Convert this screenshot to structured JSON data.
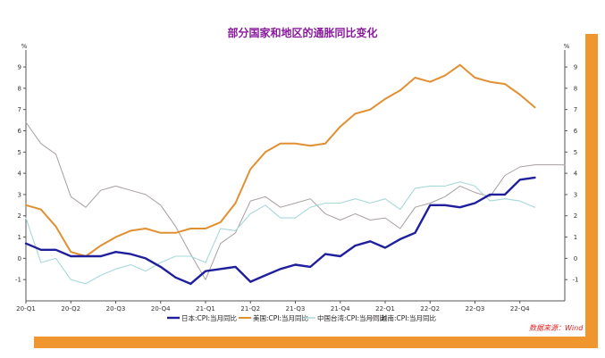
{
  "chart_data": {
    "type": "line",
    "title": "部分国家和地区的通胀同比变化",
    "y_unit_label": "%",
    "ylim": [
      -2,
      9.8
    ],
    "y_ticks": [
      -1,
      0,
      1,
      2,
      3,
      4,
      5,
      6,
      7,
      8,
      9
    ],
    "x_tick_labels": [
      "20-Q1",
      "20-Q2",
      "20-Q3",
      "20-Q4",
      "21-Q1",
      "21-Q2",
      "21-Q3",
      "21-Q4",
      "22-Q1",
      "22-Q2",
      "22-Q3",
      "22-Q4"
    ],
    "x": [
      "2020-01",
      "2020-02",
      "2020-03",
      "2020-04",
      "2020-05",
      "2020-06",
      "2020-07",
      "2020-08",
      "2020-09",
      "2020-10",
      "2020-11",
      "2020-12",
      "2021-01",
      "2021-02",
      "2021-03",
      "2021-04",
      "2021-05",
      "2021-06",
      "2021-07",
      "2021-08",
      "2021-09",
      "2021-10",
      "2021-11",
      "2021-12",
      "2022-01",
      "2022-02",
      "2022-03",
      "2022-04",
      "2022-05",
      "2022-06",
      "2022-07",
      "2022-08",
      "2022-09",
      "2022-10",
      "2022-11",
      "2022-12",
      "2023-01"
    ],
    "series": [
      {
        "name": "日本:CPI:当月同比",
        "color": "#1f1f9e",
        "width": 2.4,
        "values": [
          0.7,
          0.4,
          0.4,
          0.1,
          0.1,
          0.1,
          0.3,
          0.2,
          0.0,
          -0.4,
          -0.9,
          -1.2,
          -0.6,
          -0.5,
          -0.4,
          -1.1,
          -0.8,
          -0.5,
          -0.3,
          -0.4,
          0.2,
          0.1,
          0.6,
          0.8,
          0.5,
          0.9,
          1.2,
          2.5,
          2.5,
          2.4,
          2.6,
          3.0,
          3.0,
          3.7,
          3.8,
          null,
          null
        ]
      },
      {
        "name": "美国:CPI:当月同比",
        "color": "#e09030",
        "width": 2.0,
        "values": [
          2.5,
          2.3,
          1.5,
          0.3,
          0.1,
          0.6,
          1.0,
          1.3,
          1.4,
          1.2,
          1.2,
          1.4,
          1.4,
          1.7,
          2.6,
          4.2,
          5.0,
          5.4,
          5.4,
          5.3,
          5.4,
          6.2,
          6.8,
          7.0,
          7.5,
          7.9,
          8.5,
          8.3,
          8.6,
          9.1,
          8.5,
          8.3,
          8.2,
          7.7,
          7.1,
          null,
          null
        ]
      },
      {
        "name": "中国台湾:CPI:当月同比",
        "color": "#a8d8d8",
        "width": 1.1,
        "values": [
          1.9,
          -0.2,
          0.0,
          -1.0,
          -1.2,
          -0.8,
          -0.5,
          -0.3,
          -0.6,
          -0.2,
          0.1,
          0.1,
          -0.2,
          1.4,
          1.3,
          2.1,
          2.5,
          1.9,
          1.9,
          2.4,
          2.6,
          2.6,
          2.8,
          2.6,
          2.8,
          2.3,
          3.3,
          3.4,
          3.4,
          3.6,
          3.4,
          2.7,
          2.8,
          2.7,
          2.4,
          null,
          null
        ]
      },
      {
        "name": "越南:CPI:当月同比",
        "color": "#a89ea0",
        "width": 1.0,
        "values": [
          6.4,
          5.4,
          4.9,
          2.9,
          2.4,
          3.2,
          3.4,
          3.2,
          3.0,
          2.5,
          1.5,
          0.2,
          -1.0,
          0.7,
          1.2,
          2.7,
          2.9,
          2.4,
          2.6,
          2.8,
          2.1,
          1.8,
          2.1,
          1.8,
          1.9,
          1.4,
          2.4,
          2.6,
          2.9,
          3.4,
          3.1,
          2.9,
          3.9,
          4.3,
          4.4,
          4.4,
          4.4
        ]
      }
    ],
    "legend_position": "bottom",
    "grid": false,
    "source_note": "数据来源：Wind"
  }
}
